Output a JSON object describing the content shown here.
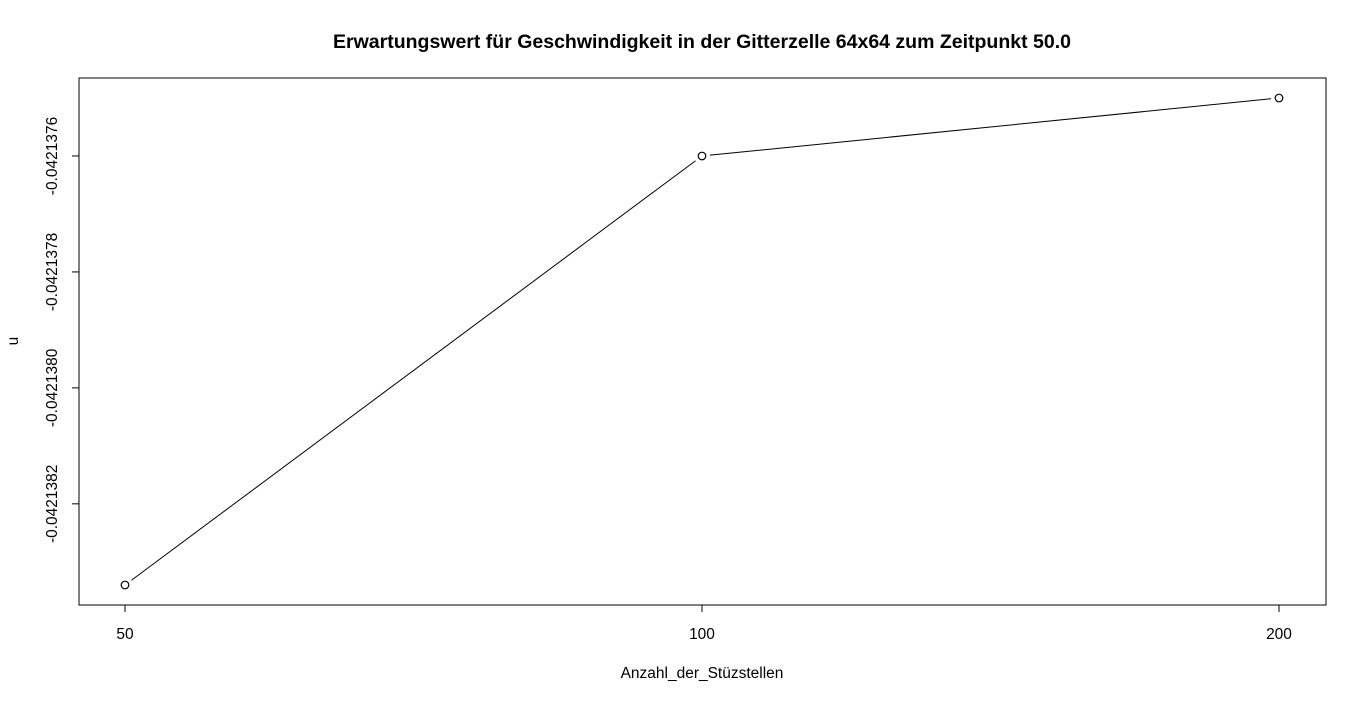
{
  "chart_data": {
    "type": "line",
    "title": "Erwartungswert für Geschwindigkeit in der Gitterzelle 64x64 zum Zeitpunkt 50.0",
    "xlabel": "Anzahl_der_Stüzstellen",
    "ylabel": "u",
    "categories": [
      "50",
      "100",
      "200"
    ],
    "series": [
      {
        "values": [
          -0.04213834,
          -0.0421376,
          -0.0421375
        ]
      }
    ],
    "yticks": [
      -0.0421376,
      -0.0421378,
      -0.042138,
      -0.0421382
    ],
    "ytick_labels": [
      "-0.0421376",
      "-0.0421378",
      "-0.0421380",
      "-0.0421382"
    ],
    "ylim": [
      -0.04213847,
      -0.04213747
    ],
    "grid": false,
    "legend": "none",
    "colors": {
      "line": "#000000",
      "point_stroke": "#000000",
      "axis": "#000000"
    }
  }
}
